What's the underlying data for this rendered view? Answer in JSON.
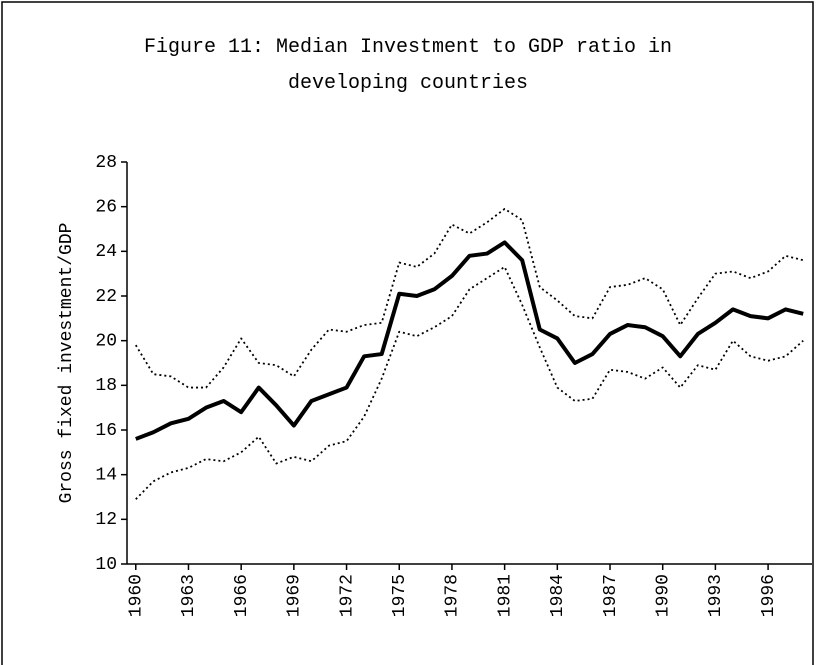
{
  "chart_data": {
    "type": "line",
    "title": "Figure 11: Median Investment to GDP ratio in developing countries",
    "y_label": "Gross fixed investment/GDP",
    "x": [
      1960,
      1961,
      1962,
      1963,
      1964,
      1965,
      1966,
      1967,
      1968,
      1969,
      1970,
      1971,
      1972,
      1973,
      1974,
      1975,
      1976,
      1977,
      1978,
      1979,
      1980,
      1981,
      1982,
      1983,
      1984,
      1985,
      1986,
      1987,
      1988,
      1989,
      1990,
      1991,
      1992,
      1993,
      1994,
      1995,
      1996,
      1997,
      1998
    ],
    "series": [
      {
        "color": "#000000",
        "dash": "dotted",
        "values": [
          19.8,
          18.5,
          18.4,
          17.9,
          17.9,
          18.8,
          20.1,
          19.0,
          18.9,
          18.4,
          19.6,
          20.5,
          20.4,
          20.7,
          20.8,
          23.5,
          23.3,
          23.9,
          25.2,
          24.8,
          25.3,
          25.9,
          25.4,
          22.4,
          21.8,
          21.1,
          21.0,
          22.4,
          22.5,
          22.8,
          22.3,
          20.7,
          21.9,
          23.0,
          23.1,
          22.8,
          23.1,
          23.8,
          23.6
        ]
      },
      {
        "color": "#000000",
        "dash": "solid",
        "values": [
          15.6,
          15.9,
          16.3,
          16.5,
          17.0,
          17.3,
          16.8,
          17.9,
          17.1,
          16.2,
          17.3,
          17.6,
          17.9,
          19.3,
          19.4,
          22.1,
          22.0,
          22.3,
          22.9,
          23.8,
          23.9,
          24.4,
          23.6,
          20.5,
          20.1,
          19.0,
          19.4,
          20.3,
          20.7,
          20.6,
          20.2,
          19.3,
          20.3,
          20.8,
          21.4,
          21.1,
          21.0,
          21.4,
          21.2
        ]
      },
      {
        "color": "#000000",
        "dash": "dotted",
        "values": [
          12.9,
          13.7,
          14.1,
          14.3,
          14.7,
          14.6,
          15.0,
          15.7,
          14.5,
          14.8,
          14.6,
          15.3,
          15.5,
          16.6,
          18.3,
          20.4,
          20.2,
          20.6,
          21.1,
          22.3,
          22.8,
          23.3,
          21.6,
          19.7,
          17.9,
          17.3,
          17.4,
          18.7,
          18.6,
          18.3,
          18.8,
          17.9,
          18.9,
          18.7,
          20.0,
          19.3,
          19.1,
          19.3,
          20.0
        ]
      }
    ],
    "xlim": [
      1959.5,
      1998.5
    ],
    "xticks": [
      1960,
      1963,
      1966,
      1969,
      1972,
      1975,
      1978,
      1981,
      1984,
      1987,
      1990,
      1993,
      1996
    ],
    "ylim": [
      10,
      28
    ],
    "yticks": [
      10,
      12,
      14,
      16,
      18,
      20,
      22,
      24,
      26,
      28
    ],
    "grid": false
  }
}
